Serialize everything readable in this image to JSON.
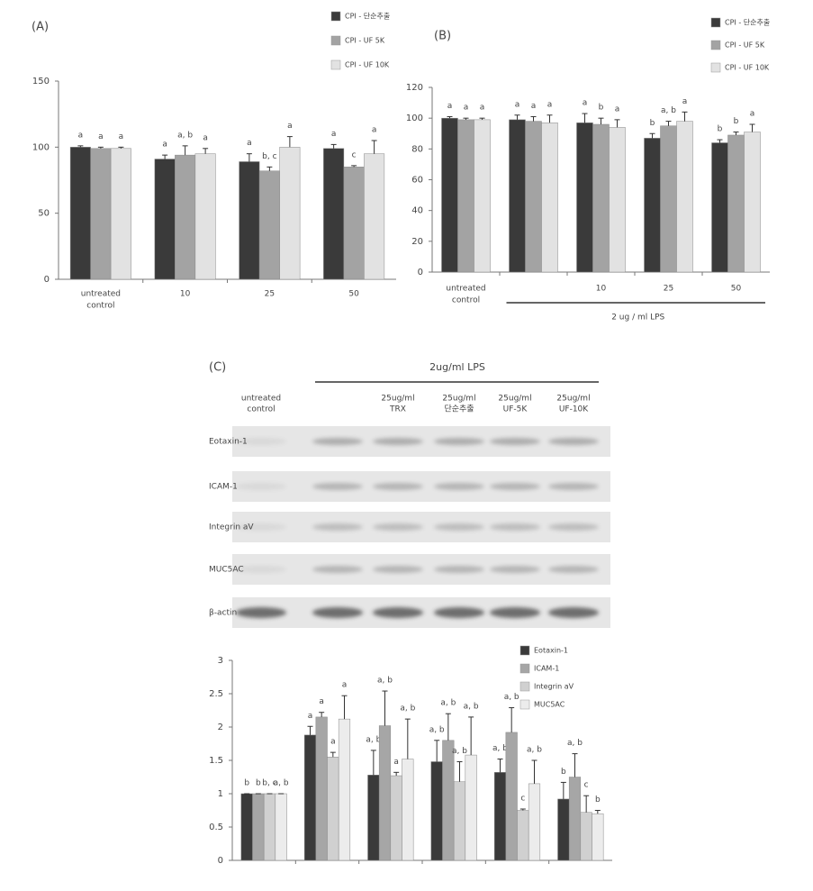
{
  "chart_data": [
    {
      "type": "bar",
      "label": "(A)",
      "categories": [
        [
          "untreated",
          "control"
        ],
        [
          "10"
        ],
        [
          "25"
        ],
        [
          "50"
        ]
      ],
      "series": [
        {
          "name": "CPI - 단순추출",
          "color": "#3a3a3a",
          "values": [
            100,
            91,
            89,
            99
          ],
          "errors": [
            1,
            3,
            6,
            3
          ],
          "letters": [
            "a",
            "a",
            "a",
            "a"
          ]
        },
        {
          "name": "CPI - UF 5K",
          "color": "#a3a3a3",
          "values": [
            99,
            94,
            82,
            85
          ],
          "errors": [
            1,
            7,
            3,
            1
          ],
          "letters": [
            "a",
            "a, b",
            "b, c",
            "c"
          ]
        },
        {
          "name": "CPI - UF 10K",
          "color": "#e2e2e2",
          "values": [
            99,
            95,
            100,
            95
          ],
          "errors": [
            1,
            4,
            8,
            10
          ],
          "letters": [
            "a",
            "a",
            "a",
            "a"
          ]
        }
      ],
      "ylim": [
        0,
        150
      ],
      "yticks": [
        0,
        50,
        100,
        150
      ]
    },
    {
      "type": "bar",
      "label": "(B)",
      "categories": [
        [
          "untreated",
          "control"
        ],
        null,
        [
          "10"
        ],
        [
          "25"
        ],
        [
          "50"
        ]
      ],
      "series": [
        {
          "name": "CPI - 단순추출",
          "color": "#3a3a3a",
          "values": [
            100,
            99,
            97,
            87,
            84
          ],
          "errors": [
            1,
            3,
            6,
            3,
            2
          ],
          "letters": [
            "a",
            "a",
            "a",
            "b",
            "b"
          ]
        },
        {
          "name": "CPI - UF 5K",
          "color": "#a3a3a3",
          "values": [
            99,
            98,
            96,
            95,
            89
          ],
          "errors": [
            1,
            3,
            4,
            3,
            2
          ],
          "letters": [
            "a",
            "a",
            "b",
            "a, b",
            "b"
          ]
        },
        {
          "name": "CPI - UF 10K",
          "color": "#e2e2e2",
          "values": [
            99,
            97,
            94,
            98,
            91
          ],
          "errors": [
            1,
            5,
            5,
            6,
            5
          ],
          "letters": [
            "a",
            "a",
            "a",
            "a",
            "a"
          ]
        }
      ],
      "ylim": [
        0,
        120
      ],
      "yticks": [
        0,
        20,
        40,
        60,
        80,
        100,
        120
      ],
      "annotation": "2 ug / ml LPS"
    },
    {
      "type": "bar",
      "categories": [
        null,
        null,
        null,
        null,
        null,
        null
      ],
      "series": [
        {
          "name": "Eotaxin-1",
          "color": "#3a3a3a",
          "values": [
            1,
            1.88,
            1.28,
            1.48,
            1.32,
            0.92
          ],
          "errors": [
            0,
            0.13,
            0.37,
            0.32,
            0.2,
            0.25
          ],
          "letters": [
            "b",
            "a",
            "a, b",
            "a, b",
            "a, b",
            "b"
          ]
        },
        {
          "name": "ICAM-1",
          "color": "#a6a6a6",
          "values": [
            1,
            2.15,
            2.02,
            1.8,
            1.92,
            1.25
          ],
          "errors": [
            0,
            0.07,
            0.52,
            0.4,
            0.37,
            0.35
          ],
          "letters": [
            "b",
            "a",
            "a, b",
            "a, b",
            "a, b",
            "a, b"
          ]
        },
        {
          "name": "Integrin aV",
          "color": "#d0d0d0",
          "values": [
            1,
            1.55,
            1.27,
            1.18,
            0.75,
            0.72
          ],
          "errors": [
            0,
            0.07,
            0.05,
            0.3,
            0.02,
            0.25
          ],
          "letters": [
            "b, c",
            "a",
            "a",
            "a, b",
            "c",
            "c"
          ]
        },
        {
          "name": "MUC5AC",
          "color": "#ececec",
          "values": [
            1,
            2.12,
            1.52,
            1.58,
            1.15,
            0.7
          ],
          "errors": [
            0,
            0.35,
            0.6,
            0.57,
            0.35,
            0.05
          ],
          "letters": [
            "a, b",
            "a",
            "a, b",
            "a, b",
            "a, b",
            "b"
          ]
        }
      ],
      "ylim": [
        0,
        3
      ],
      "yticks": [
        0,
        0.5,
        1,
        1.5,
        2,
        2.5,
        3
      ]
    }
  ],
  "blot": {
    "label": "(C)",
    "group_label": "2ug/ml LPS",
    "lanes": [
      [
        "untreated",
        "control"
      ],
      null,
      [
        "25ug/ml",
        "TRX"
      ],
      [
        "25ug/ml",
        "단순추출"
      ],
      [
        "25ug/ml",
        "UF-5K"
      ],
      [
        "25ug/ml",
        "UF-10K"
      ]
    ],
    "rows": [
      "Eotaxin-1",
      "ICAM-1",
      "Integrin aV",
      "MUC5AC",
      "β-actin"
    ]
  }
}
